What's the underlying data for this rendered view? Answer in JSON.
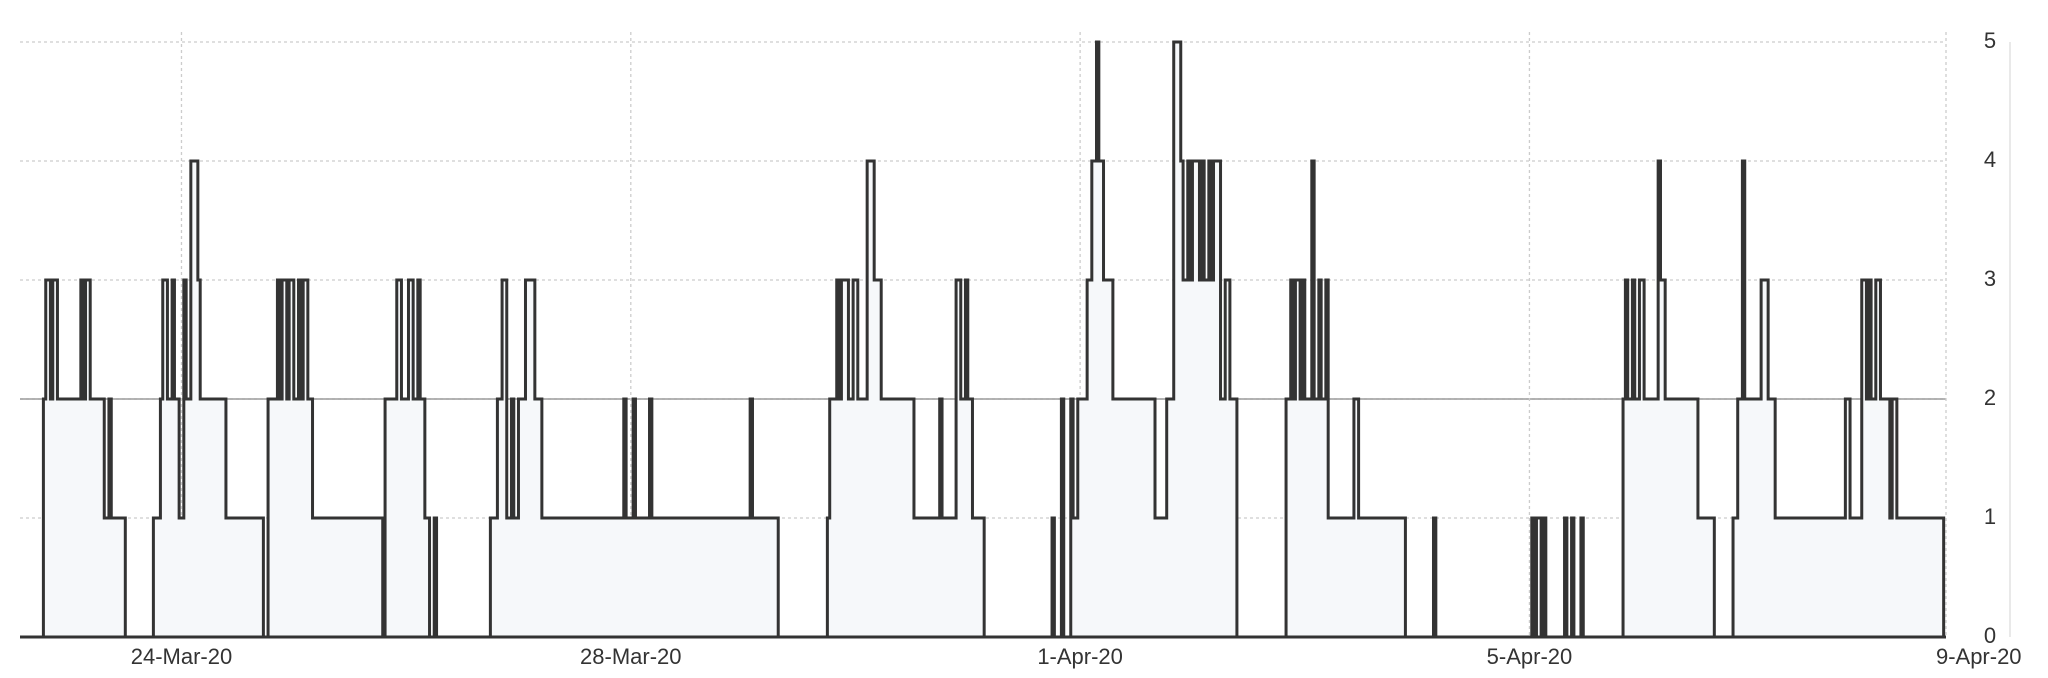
{
  "chart_data": {
    "type": "step-line",
    "x": [
      "2020-03-22T18:00",
      "2020-03-22T18:30",
      "2020-03-22T19:00",
      "2020-03-22T20:00",
      "2020-03-22T20:30",
      "2020-03-22T21:30",
      "2020-03-23T02:30",
      "2020-03-23T03:00",
      "2020-03-23T03:30",
      "2020-03-23T04:30",
      "2020-03-23T07:30",
      "2020-03-23T08:30",
      "2020-03-23T09:00",
      "2020-03-23T12:00",
      "2020-03-23T18:00",
      "2020-03-23T19:30",
      "2020-03-23T20:00",
      "2020-03-23T21:00",
      "2020-03-23T22:00",
      "2020-03-23T22:30",
      "2020-03-23T23:30",
      "2020-03-24T00:30",
      "2020-03-24T01:00",
      "2020-03-24T02:00",
      "2020-03-24T03:30",
      "2020-03-24T04:00",
      "2020-03-24T09:30",
      "2020-03-24T17:30",
      "2020-03-24T18:30",
      "2020-03-24T20:30",
      "2020-03-24T21:00",
      "2020-03-24T21:30",
      "2020-03-24T22:30",
      "2020-03-24T23:00",
      "2020-03-25T00:00",
      "2020-03-25T01:00",
      "2020-03-25T01:30",
      "2020-03-25T02:00",
      "2020-03-25T03:00",
      "2020-03-25T04:00",
      "2020-03-25T19:00",
      "2020-03-25T19:30",
      "2020-03-25T22:00",
      "2020-03-25T23:00",
      "2020-03-26T00:30",
      "2020-03-26T01:30",
      "2020-03-26T02:30",
      "2020-03-26T03:00",
      "2020-03-26T04:00",
      "2020-03-26T05:00",
      "2020-03-26T06:00",
      "2020-03-26T06:30",
      "2020-03-26T18:00",
      "2020-03-26T19:30",
      "2020-03-26T20:30",
      "2020-03-26T21:30",
      "2020-03-26T22:30",
      "2020-03-26T23:00",
      "2020-03-27T00:00",
      "2020-03-27T01:30",
      "2020-03-27T03:30",
      "2020-03-27T05:00",
      "2020-03-27T22:30",
      "2020-03-27T23:00",
      "2020-03-28T00:30",
      "2020-03-28T01:00",
      "2020-03-28T04:00",
      "2020-03-28T04:30",
      "2020-03-29T01:30",
      "2020-03-29T02:00",
      "2020-03-29T07:30",
      "2020-03-29T18:00",
      "2020-03-29T18:30",
      "2020-03-29T20:00",
      "2020-03-29T20:30",
      "2020-03-29T21:00",
      "2020-03-29T22:30",
      "2020-03-29T23:30",
      "2020-03-30T00:30",
      "2020-03-30T02:30",
      "2020-03-30T04:00",
      "2020-03-30T05:30",
      "2020-03-30T12:30",
      "2020-03-30T18:00",
      "2020-03-30T18:30",
      "2020-03-30T21:30",
      "2020-03-30T22:30",
      "2020-03-30T23:30",
      "2020-03-31T00:00",
      "2020-03-31T01:00",
      "2020-03-31T03:30",
      "2020-03-31T18:00",
      "2020-03-31T18:30",
      "2020-03-31T20:00",
      "2020-03-31T20:30",
      "2020-03-31T22:00",
      "2020-03-31T22:30",
      "2020-03-31T23:30",
      "2020-04-01T01:30",
      "2020-04-01T02:30",
      "2020-04-01T03:30",
      "2020-04-01T04:00",
      "2020-04-01T05:00",
      "2020-04-01T07:00",
      "2020-04-01T16:00",
      "2020-04-01T18:30",
      "2020-04-01T20:00",
      "2020-04-01T21:30",
      "2020-04-01T22:00",
      "2020-04-01T23:00",
      "2020-04-01T23:30",
      "2020-04-02T00:00",
      "2020-04-02T01:30",
      "2020-04-02T02:00",
      "2020-04-02T02:30",
      "2020-04-02T03:30",
      "2020-04-02T04:00",
      "2020-04-02T04:30",
      "2020-04-02T06:00",
      "2020-04-02T07:00",
      "2020-04-02T08:00",
      "2020-04-02T09:30",
      "2020-04-02T20:00",
      "2020-04-02T21:00",
      "2020-04-02T21:30",
      "2020-04-02T22:00",
      "2020-04-02T23:00",
      "2020-04-02T23:30",
      "2020-04-03T00:00",
      "2020-04-03T01:30",
      "2020-04-03T02:00",
      "2020-04-03T03:00",
      "2020-04-03T03:30",
      "2020-04-03T04:30",
      "2020-04-03T05:00",
      "2020-04-03T10:30",
      "2020-04-03T11:30",
      "2020-04-03T21:30",
      "2020-04-04T03:30",
      "2020-04-04T04:00",
      "2020-04-05T00:30",
      "2020-04-05T01:00",
      "2020-04-05T01:30",
      "2020-04-05T02:30",
      "2020-04-05T03:00",
      "2020-04-05T03:30",
      "2020-04-05T07:30",
      "2020-04-05T08:00",
      "2020-04-05T09:00",
      "2020-04-05T09:30",
      "2020-04-05T11:00",
      "2020-04-05T11:30",
      "2020-04-05T20:00",
      "2020-04-05T20:30",
      "2020-04-05T21:00",
      "2020-04-05T22:00",
      "2020-04-05T22:30",
      "2020-04-05T23:30",
      "2020-04-06T00:30",
      "2020-04-06T03:30",
      "2020-04-06T04:00",
      "2020-04-06T05:00",
      "2020-04-06T12:00",
      "2020-04-06T15:30",
      "2020-04-06T19:30",
      "2020-04-06T20:30",
      "2020-04-06T21:30",
      "2020-04-06T22:00",
      "2020-04-07T01:30",
      "2020-04-07T03:00",
      "2020-04-07T04:30",
      "2020-04-07T19:30",
      "2020-04-07T20:30",
      "2020-04-07T23:00",
      "2020-04-08T00:00",
      "2020-04-08T00:30",
      "2020-04-08T01:00",
      "2020-04-08T02:00",
      "2020-04-08T03:00",
      "2020-04-08T05:00",
      "2020-04-08T05:30",
      "2020-04-08T06:30",
      "2020-04-08T16:30"
    ],
    "values": [
      0,
      2,
      3,
      2,
      3,
      2,
      3,
      2,
      3,
      2,
      1,
      2,
      1,
      0,
      1,
      2,
      3,
      2,
      3,
      2,
      1,
      3,
      2,
      4,
      3,
      2,
      1,
      0,
      2,
      3,
      2,
      3,
      2,
      3,
      2,
      3,
      2,
      3,
      2,
      1,
      0,
      2,
      3,
      2,
      3,
      2,
      3,
      2,
      1,
      0,
      1,
      0,
      1,
      2,
      3,
      1,
      2,
      1,
      2,
      3,
      2,
      1,
      2,
      1,
      2,
      1,
      2,
      1,
      2,
      1,
      0,
      1,
      2,
      3,
      2,
      3,
      2,
      3,
      2,
      4,
      3,
      2,
      1,
      2,
      1,
      3,
      2,
      3,
      2,
      1,
      0,
      1,
      0,
      2,
      0,
      2,
      1,
      2,
      3,
      4,
      5,
      4,
      3,
      2,
      1,
      2,
      5,
      4,
      3,
      4,
      3,
      4,
      3,
      4,
      3,
      4,
      3,
      4,
      2,
      3,
      2,
      0,
      2,
      3,
      2,
      3,
      2,
      3,
      2,
      4,
      2,
      3,
      2,
      3,
      1,
      2,
      1,
      0,
      1,
      0,
      1,
      0,
      1,
      0,
      1,
      0,
      1,
      0,
      1,
      0,
      1,
      0,
      2,
      3,
      2,
      3,
      2,
      3,
      2,
      4,
      3,
      2,
      1,
      0,
      1,
      2,
      4,
      2,
      3,
      2,
      1,
      2,
      1,
      3,
      2,
      3,
      2,
      3,
      2,
      1,
      2,
      1,
      0
    ],
    "color": "#333333",
    "xlim": [
      "2020-03-22T13:30",
      "2020-04-08T17:00"
    ],
    "xticks": [
      {
        "value": "2020-03-24T00:00",
        "label": "24-Mar-20"
      },
      {
        "value": "2020-03-28T00:00",
        "label": "28-Mar-20"
      },
      {
        "value": "2020-04-01T00:00",
        "label": "1-Apr-20"
      },
      {
        "value": "2020-04-05T00:00",
        "label": "5-Apr-20"
      },
      {
        "value": "2020-04-09T00:00",
        "label": "9-Apr-20"
      }
    ],
    "ylim": [
      0,
      5
    ],
    "yticks": [
      0,
      1,
      2,
      3,
      4,
      5
    ],
    "grid": true,
    "reference_line": 2
  }
}
